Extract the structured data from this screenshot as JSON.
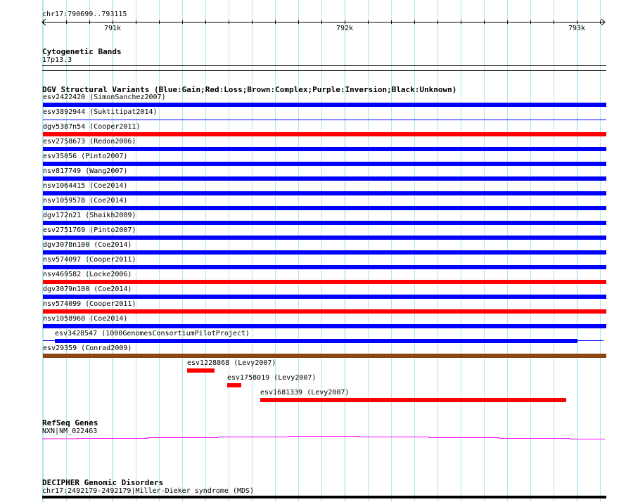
{
  "range": {
    "label": "chr17:790699..793115",
    "start": 790699,
    "end": 793115
  },
  "axis": {
    "ticks": [
      {
        "pos": 791000,
        "label": "791k"
      },
      {
        "pos": 792000,
        "label": "792k"
      },
      {
        "pos": 793000,
        "label": "793k"
      }
    ]
  },
  "colors": {
    "gain": "#0000ff",
    "loss": "#ff0000",
    "complex": "#8b4513",
    "gene": "#ff00ff",
    "grid": "#b0e6ee"
  },
  "tracks": {
    "cyto": {
      "title": "Cytogenetic Bands",
      "band": "17p13.3"
    },
    "dgv": {
      "title": "DGV Structural Variants (Blue:Gain;Red:Loss;Brown:Complex;Purple:Inversion;Black:Unknown)",
      "features": [
        {
          "label": "esv2422420 (SimonSanchez2007)",
          "type": "gain",
          "start": 790699,
          "end": 793115
        },
        {
          "label": "esv3892944 (Suktitipat2014)",
          "type": "gain",
          "start": 790699,
          "end": 793115,
          "thin": true
        },
        {
          "label": "dgv5387n54 (Cooper2011)",
          "type": "loss",
          "start": 790699,
          "end": 793115
        },
        {
          "label": "esv2758673 (Redon2006)",
          "type": "gain",
          "start": 790699,
          "end": 793115
        },
        {
          "label": "esv35056 (Pinto2007)",
          "type": "gain",
          "start": 790699,
          "end": 793115
        },
        {
          "label": "nsv817749 (Wang2007)",
          "type": "gain",
          "start": 790699,
          "end": 793115
        },
        {
          "label": "nsv1064415 (Coe2014)",
          "type": "gain",
          "start": 790699,
          "end": 793115
        },
        {
          "label": "nsv1059578 (Coe2014)",
          "type": "gain",
          "start": 790699,
          "end": 793115
        },
        {
          "label": "dgv172n21 (Shaikh2009)",
          "type": "gain",
          "start": 790699,
          "end": 793115
        },
        {
          "label": "esv2751769 (Pinto2007)",
          "type": "gain",
          "start": 790699,
          "end": 793115
        },
        {
          "label": "dgv3078n100 (Coe2014)",
          "type": "gain",
          "start": 790699,
          "end": 793115
        },
        {
          "label": "nsv574097 (Cooper2011)",
          "type": "gain",
          "start": 790699,
          "end": 793115
        },
        {
          "label": "nsv469582 (Locke2006)",
          "type": "loss",
          "start": 790699,
          "end": 793115
        },
        {
          "label": "dgv3079n100 (Coe2014)",
          "type": "gain",
          "start": 790699,
          "end": 793115
        },
        {
          "label": "nsv574099 (Cooper2011)",
          "type": "loss",
          "start": 790699,
          "end": 793115
        },
        {
          "label": "nsv1058960 (Coe2014)",
          "type": "gain",
          "start": 790699,
          "end": 793115
        },
        {
          "label": "esv3428547 (1000GenomesConsortiumPilotProject)",
          "type": "gain",
          "start": 790752,
          "end": 793002,
          "thin_start": 790699,
          "thin_end": 793115
        },
        {
          "label": "esv29359 (Conrad2009)",
          "type": "complex",
          "start": 790699,
          "end": 793115
        },
        {
          "label": "esv1228868 (Levy2007)",
          "type": "loss",
          "start": 791321,
          "end": 791440
        },
        {
          "label": "esv1758019 (Levy2007)",
          "type": "loss",
          "start": 791494,
          "end": 791555
        },
        {
          "label": "esv1681339 (Levy2007)",
          "type": "loss",
          "start": 791637,
          "end": 792955
        }
      ]
    },
    "refseq": {
      "title": "RefSeq Genes",
      "gene": "NXN|NM_022463"
    },
    "decipher": {
      "title": "DECIPHER Genomic Disorders",
      "feature": "chr17:2492179-2492179|Miller-Dieker syndrome (MDS)"
    }
  }
}
